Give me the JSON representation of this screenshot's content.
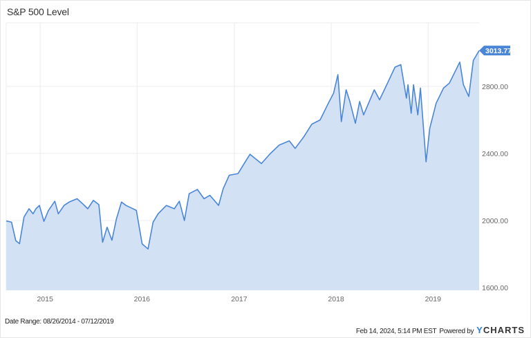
{
  "title": "S&P 500 Level",
  "date_range": "Date Range: 08/26/2014 - 07/12/2019",
  "footer": {
    "timestamp": "Feb 14, 2024, 5:14 PM EST",
    "powered_by": "Powered by",
    "brand_y": "Y",
    "brand_rest": "CHARTS"
  },
  "colors": {
    "line": "#4a86d8",
    "fill": "#d3e1f5",
    "grid": "#ececec",
    "label_bg": "#4a86d8",
    "label_text": "#ffffff",
    "axis_text": "#666666"
  },
  "chart_data": {
    "type": "area",
    "title": "S&P 500 Level",
    "xlabel": "",
    "ylabel": "",
    "ylim": [
      1600,
      3100
    ],
    "yticks": [
      1600,
      2000,
      2400,
      2800
    ],
    "ytick_labels": [
      "1600.00",
      "2000.00",
      "2400.00",
      "2800.00"
    ],
    "xticks": [
      "2015",
      "2016",
      "2017",
      "2018",
      "2019"
    ],
    "grid": true,
    "legend": null,
    "last_value_label": "3013.77",
    "last_value": 3013.77,
    "x": [
      "2014-08-26",
      "2014-09-15",
      "2014-10-01",
      "2014-10-15",
      "2014-11-01",
      "2014-11-20",
      "2014-12-05",
      "2014-12-16",
      "2014-12-29",
      "2015-01-15",
      "2015-02-01",
      "2015-02-25",
      "2015-03-10",
      "2015-04-01",
      "2015-04-20",
      "2015-05-20",
      "2015-06-10",
      "2015-06-29",
      "2015-07-20",
      "2015-08-10",
      "2015-08-24",
      "2015-09-10",
      "2015-09-28",
      "2015-10-15",
      "2015-11-03",
      "2015-11-20",
      "2015-12-10",
      "2015-12-29",
      "2016-01-20",
      "2016-02-11",
      "2016-03-01",
      "2016-03-20",
      "2016-04-20",
      "2016-05-20",
      "2016-06-08",
      "2016-06-27",
      "2016-07-15",
      "2016-08-15",
      "2016-09-09",
      "2016-10-01",
      "2016-11-03",
      "2016-11-20",
      "2016-12-13",
      "2017-01-15",
      "2017-02-15",
      "2017-03-01",
      "2017-04-13",
      "2017-05-17",
      "2017-06-19",
      "2017-07-27",
      "2017-08-18",
      "2017-09-20",
      "2017-10-20",
      "2017-11-20",
      "2017-12-18",
      "2018-01-10",
      "2018-01-26",
      "2018-02-08",
      "2018-02-26",
      "2018-03-12",
      "2018-04-02",
      "2018-04-18",
      "2018-05-03",
      "2018-06-12",
      "2018-07-02",
      "2018-08-01",
      "2018-08-29",
      "2018-09-20",
      "2018-10-11",
      "2018-10-17",
      "2018-10-29",
      "2018-11-07",
      "2018-11-23",
      "2018-12-03",
      "2018-12-24",
      "2019-01-07",
      "2019-01-31",
      "2019-02-28",
      "2019-03-22",
      "2019-04-30",
      "2019-05-14",
      "2019-06-03",
      "2019-06-20",
      "2019-07-12"
    ],
    "values": [
      1997,
      1990,
      1880,
      1862,
      2020,
      2070,
      2040,
      2070,
      2090,
      1995,
      2060,
      2115,
      2040,
      2090,
      2110,
      2130,
      2100,
      2070,
      2120,
      2095,
      1870,
      1960,
      1882,
      2010,
      2110,
      2090,
      2075,
      2060,
      1860,
      1830,
      1990,
      2040,
      2090,
      2070,
      2115,
      2000,
      2160,
      2185,
      2130,
      2150,
      2090,
      2190,
      2270,
      2280,
      2360,
      2395,
      2340,
      2400,
      2450,
      2475,
      2430,
      2500,
      2575,
      2600,
      2690,
      2760,
      2870,
      2590,
      2780,
      2710,
      2580,
      2710,
      2630,
      2780,
      2720,
      2820,
      2915,
      2930,
      2730,
      2810,
      2640,
      2810,
      2630,
      2790,
      2350,
      2550,
      2700,
      2790,
      2820,
      2945,
      2810,
      2740,
      2955,
      3013.77
    ]
  }
}
